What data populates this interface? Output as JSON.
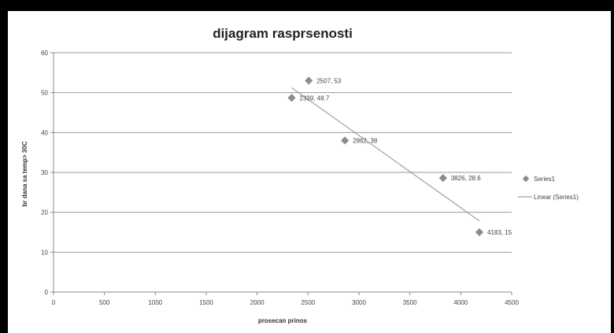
{
  "chart_data": {
    "type": "scatter",
    "title": "dijagram rasprsenosti",
    "xlabel": "prosecan prinos",
    "ylabel": "br dana sa temp> 30C",
    "xlim": [
      0,
      4500
    ],
    "ylim": [
      0,
      60
    ],
    "x_ticks": [
      "0",
      "500",
      "1000",
      "1500",
      "2000",
      "2500",
      "3000",
      "3500",
      "4000",
      "4500"
    ],
    "y_ticks": [
      "0",
      "10",
      "20",
      "30",
      "40",
      "50",
      "60"
    ],
    "grid": "horizontal",
    "legend_position": "right",
    "series": [
      {
        "name": "Series1",
        "color": "#8c8c8c",
        "marker": "diamond",
        "points": [
          {
            "x": 2339,
            "y": 48.7,
            "label": "2339, 48.7"
          },
          {
            "x": 2507,
            "y": 53,
            "label": "2507, 53"
          },
          {
            "x": 2862,
            "y": 38,
            "label": "2862, 38"
          },
          {
            "x": 3826,
            "y": 28.6,
            "label": "3826, 28.6"
          },
          {
            "x": 4183,
            "y": 15,
            "label": "4183, 15"
          }
        ]
      }
    ],
    "trendline": {
      "name": "Linear (Series1)",
      "type": "linear",
      "color": "#8c8c8c"
    }
  }
}
